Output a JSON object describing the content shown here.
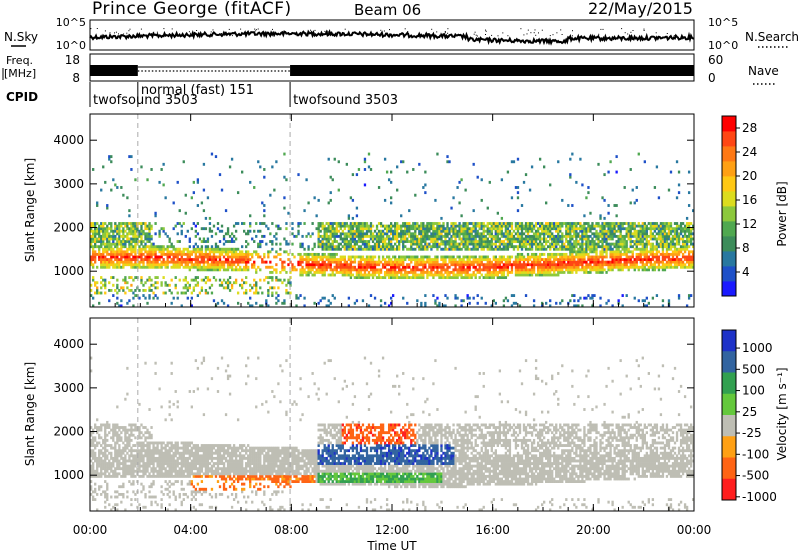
{
  "header": {
    "station": "Prince George (fitACF)",
    "beam": "Beam 06",
    "date": "22/May/2015"
  },
  "strips": {
    "nsky_label": "N.Sky",
    "nsearch_label": "N.Search",
    "noise_ticks_left": [
      "10^5",
      "10^0"
    ],
    "noise_ticks_right": [
      "10^5",
      "10^0"
    ],
    "freq_label_line1": "Freq.",
    "freq_label_line2": "[MHz]",
    "freq_ticks": [
      "18",
      "8"
    ],
    "nave_label": "Nave",
    "nave_ticks": [
      "60",
      "0"
    ],
    "cpid_label": "CPID",
    "cpid_segments": [
      {
        "name": "twofsound 3503",
        "start_hour": 0,
        "end_hour": 1.9
      },
      {
        "name": "normal (fast) 151",
        "start_hour": 1.9,
        "end_hour": 7.95
      },
      {
        "name": "twofsound 3503",
        "start_hour": 7.95,
        "end_hour": 24
      }
    ]
  },
  "chart_data": [
    {
      "type": "heatmap",
      "panel": "power",
      "ylabel": "Slant Range [km]",
      "xlabel": "",
      "xlim_hours": [
        0,
        24
      ],
      "ylim": [
        180,
        4600
      ],
      "yticks": [
        1000,
        2000,
        3000,
        4000
      ],
      "colorbar": {
        "label": "Power [dB]",
        "ticks": [
          "4",
          "8",
          "12",
          "16",
          "20",
          "24",
          "28"
        ],
        "range": [
          0,
          30
        ],
        "colors": [
          "#1a1aff",
          "#1e50c8",
          "#2878a0",
          "#3c8c5a",
          "#50a850",
          "#8cc83c",
          "#dcdc1e",
          "#ffc814",
          "#ffa014",
          "#ff7814",
          "#ff4614",
          "#ff0000"
        ]
      },
      "features": [
        {
          "range_km": [
            900,
            1500
          ],
          "hours": [
            0,
            24
          ],
          "power_db": 24
        },
        {
          "range_km": [
            1500,
            2200
          ],
          "hours": [
            0,
            24
          ],
          "power_db": 10
        },
        {
          "range_km": [
            700,
            1000
          ],
          "hours": [
            0,
            8
          ],
          "power_db": 18
        }
      ]
    },
    {
      "type": "heatmap",
      "panel": "velocity",
      "ylabel": "Slant Range [km]",
      "xlabel": "Time UT",
      "xlim_hours": [
        0,
        24
      ],
      "ylim": [
        180,
        4600
      ],
      "yticks": [
        1000,
        2000,
        3000,
        4000
      ],
      "xticks": [
        "00:00",
        "04:00",
        "08:00",
        "12:00",
        "16:00",
        "20:00",
        "00:00"
      ],
      "colorbar": {
        "label": "Velocity [m s⁻¹]",
        "ticks": [
          "1000",
          "500",
          "100",
          "25",
          "-25",
          "-100",
          "-500",
          "-1000"
        ],
        "colors": [
          "#1e32c8",
          "#3264a0",
          "#32a050",
          "#64c83c",
          "#bebeb4",
          "#ffa014",
          "#ff6414",
          "#ff1e1e"
        ]
      },
      "features": [
        {
          "range_km": [
            1000,
            2200
          ],
          "hours": [
            0,
            24
          ],
          "velocity": 0,
          "note_color": "gray"
        },
        {
          "range_km": [
            1300,
            1700
          ],
          "hours": [
            9,
            14.5
          ],
          "velocity": 400
        },
        {
          "range_km": [
            1700,
            2200
          ],
          "hours": [
            10,
            13
          ],
          "velocity": -300
        },
        {
          "range_km": [
            700,
            1000
          ],
          "hours": [
            4,
            9
          ],
          "velocity": -150
        }
      ]
    }
  ]
}
